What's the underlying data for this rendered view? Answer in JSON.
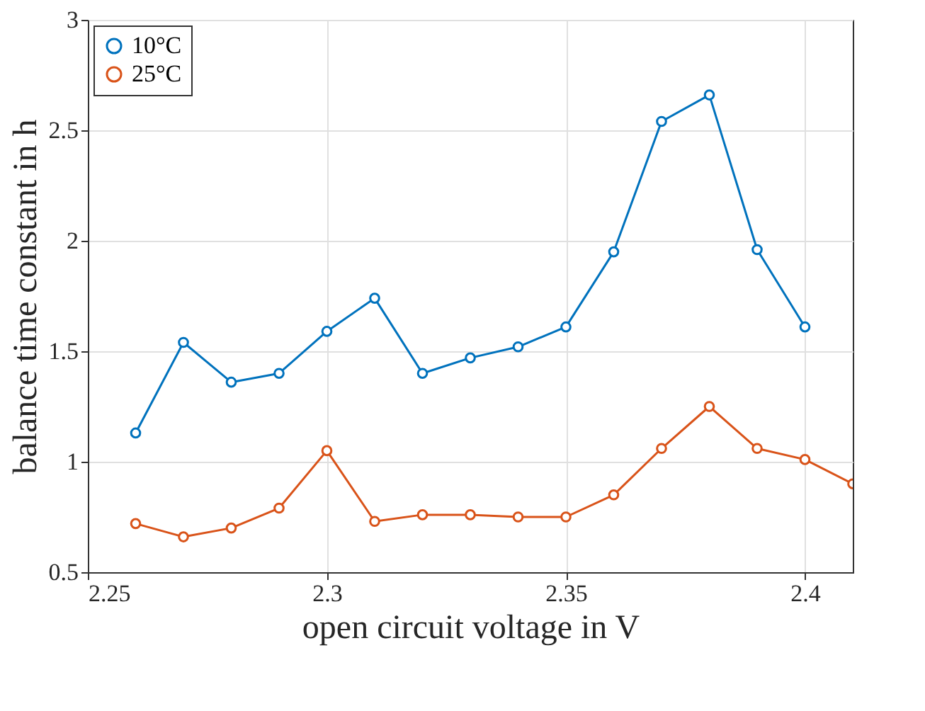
{
  "chart_data": {
    "type": "line",
    "xlabel": "open circuit voltage in V",
    "ylabel": "balance time constant in h",
    "xlim": [
      2.25,
      2.41
    ],
    "xticks": [
      2.25,
      2.3,
      2.35,
      2.4
    ],
    "ylim": [
      0.5,
      3
    ],
    "yticks": [
      0.5,
      1,
      1.5,
      2,
      2.5,
      3
    ],
    "grid": true,
    "legend": "top left",
    "marker": "circle",
    "line_style": "solid",
    "series": [
      {
        "name": "10°C",
        "color": "#0072bd",
        "x": [
          2.26,
          2.27,
          2.28,
          2.29,
          2.3,
          2.31,
          2.32,
          2.33,
          2.34,
          2.35,
          2.36,
          2.37,
          2.38,
          2.39,
          2.4
        ],
        "values": [
          1.13,
          1.54,
          1.36,
          1.4,
          1.59,
          1.74,
          1.4,
          1.47,
          1.52,
          1.61,
          1.95,
          2.54,
          2.66,
          1.96,
          1.61
        ]
      },
      {
        "name": "25°C",
        "color": "#d95319",
        "x": [
          2.26,
          2.27,
          2.28,
          2.29,
          2.3,
          2.31,
          2.32,
          2.33,
          2.34,
          2.35,
          2.36,
          2.37,
          2.38,
          2.39,
          2.4,
          2.41
        ],
        "values": [
          0.72,
          0.66,
          0.7,
          0.79,
          1.05,
          0.73,
          0.76,
          0.76,
          0.75,
          0.75,
          0.85,
          1.06,
          1.25,
          1.06,
          1.01,
          0.9
        ]
      }
    ]
  }
}
